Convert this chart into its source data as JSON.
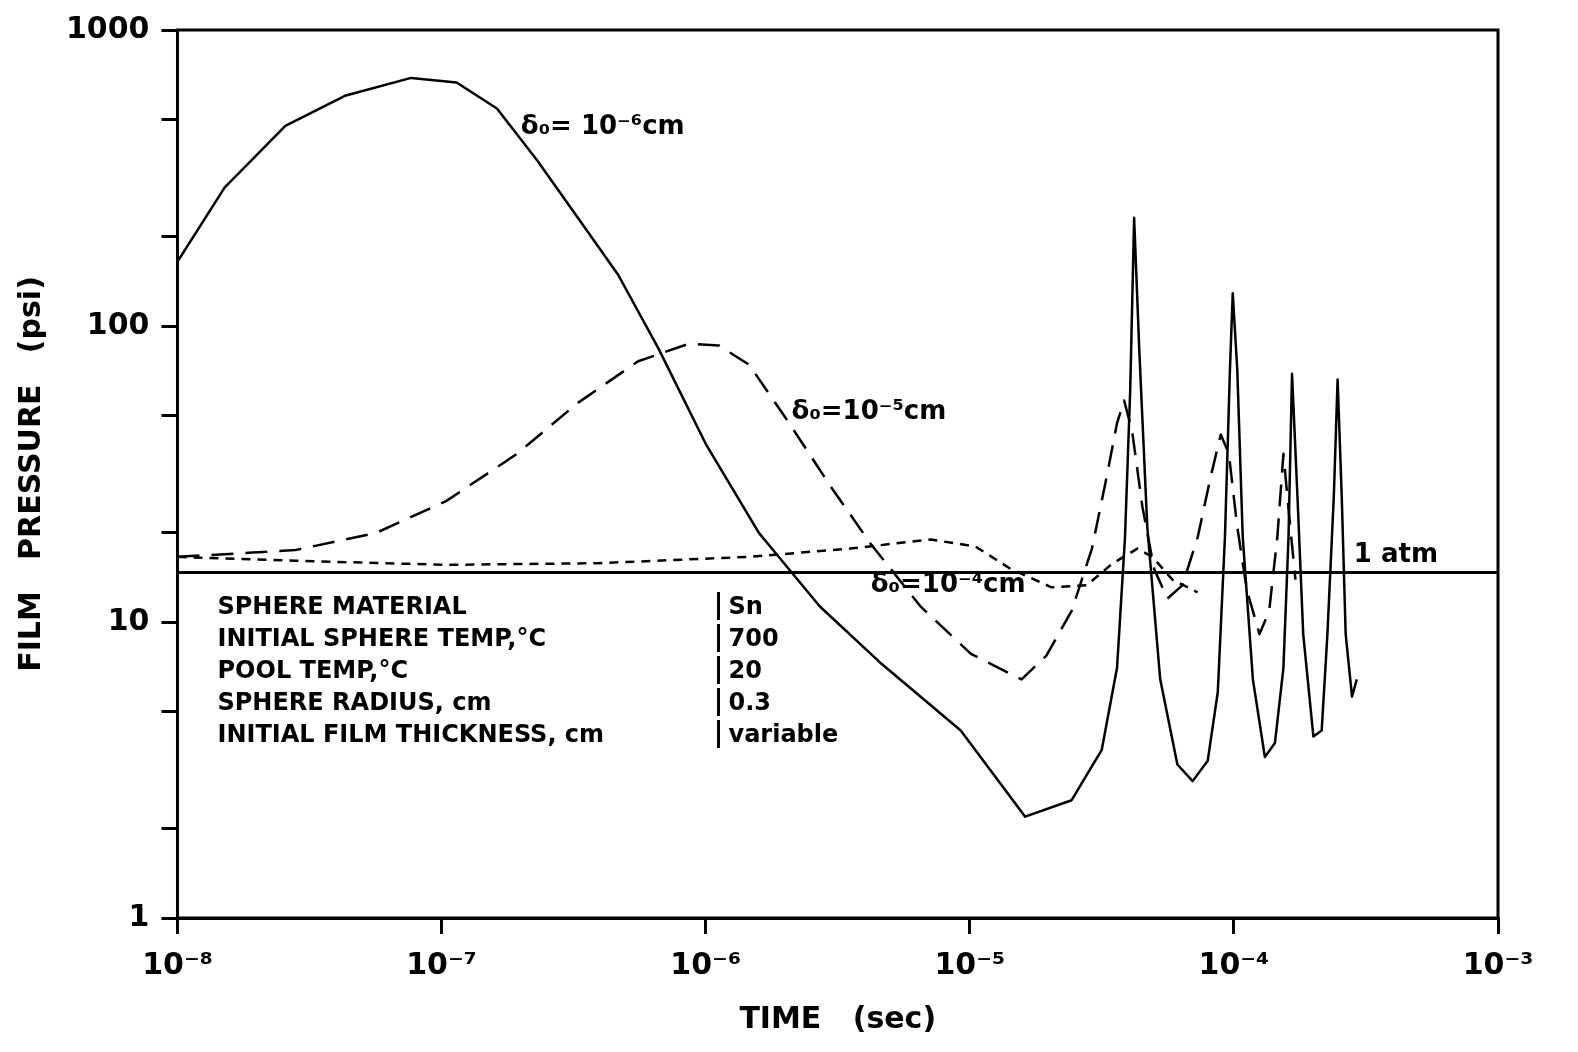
{
  "chart_data": {
    "type": "line",
    "xlabel": "TIME   (sec)",
    "ylabel": "FILM   PRESSURE   (psi)",
    "log": "xy",
    "grid": false,
    "legend": false,
    "marker": "none",
    "xlim": [
      1e-08,
      0.001
    ],
    "xticks": [
      {
        "value": 1e-08,
        "label": "10⁻⁸"
      },
      {
        "value": 1e-07,
        "label": "10⁻⁷"
      },
      {
        "value": 1e-06,
        "label": "10⁻⁶"
      },
      {
        "value": 1e-05,
        "label": "10⁻⁵"
      },
      {
        "value": 0.0001,
        "label": "10⁻⁴"
      },
      {
        "value": 0.001,
        "label": "10⁻³"
      }
    ],
    "ylim": [
      1,
      1000
    ],
    "yticks": [
      1,
      {
        "value": 2,
        "label": null
      },
      {
        "value": 5,
        "label": null
      },
      10,
      {
        "value": 20,
        "label": null
      },
      {
        "value": 50,
        "label": null
      },
      100,
      {
        "value": 200,
        "label": null
      },
      {
        "value": 500,
        "label": null
      },
      1000
    ],
    "ref_lines": [
      {
        "axis": "y",
        "value": 14.7,
        "label": "1 atm",
        "color": "#000000",
        "line_style": "solid"
      }
    ],
    "annotations": [
      "SPHERE MATERIAL",
      "Sn",
      "INITIAL SPHERE TEMP,°C",
      "700",
      "POOL TEMP,°C",
      "20",
      "SPHERE RADIUS, cm",
      "0.3",
      "INITIAL FILM THICKNESS, cm",
      "variable"
    ],
    "series": [
      {
        "name": "δ₀= 10⁻⁶cm",
        "color": "#000000",
        "line_style": "solid",
        "x": [
          1e-08,
          1.51e-08,
          2.56e-08,
          4.34e-08,
          7.67e-08,
          1.14e-07,
          1.62e-07,
          2.31e-07,
          3.28e-07,
          4.66e-07,
          6.62e-07,
          1e-06,
          1.59e-06,
          2.7e-06,
          4.57e-06,
          9.24e-06,
          1.62e-05,
          2.43e-05,
          3.16e-05,
          3.61e-05,
          3.87e-05,
          4.05e-05,
          4.19e-05,
          4.38e-05,
          4.7e-05,
          5.26e-05,
          6.11e-05,
          6.98e-05,
          7.96e-05,
          8.69e-05,
          9.25e-05,
          9.66e-05,
          9.9e-05,
          0.000103,
          0.000108,
          0.000118,
          0.000131,
          0.000143,
          0.000154,
          0.000161,
          0.000166,
          0.000174,
          0.000183,
          0.0002,
          0.000215,
          0.000226,
          0.000239,
          0.000247,
          0.000256,
          0.000265,
          0.00028,
          0.000292
        ],
        "values": [
          165,
          294,
          474,
          601,
          689,
          665,
          543,
          361,
          232,
          149,
          84,
          40,
          20,
          11.3,
          7.3,
          4.3,
          2.2,
          2.5,
          3.7,
          7,
          19.4,
          61,
          232,
          84,
          20.9,
          6.4,
          3.3,
          2.9,
          3.4,
          5.8,
          19.4,
          71,
          129,
          71,
          19.4,
          6.4,
          3.5,
          3.9,
          7,
          19.4,
          69,
          26.7,
          9.1,
          4.1,
          4.3,
          9.1,
          26.7,
          66,
          26.7,
          9.1,
          5.6,
          6.4
        ]
      },
      {
        "name": "δ₀=10⁻⁵cm",
        "color": "#000000",
        "line_style": "dashed",
        "x": [
          1e-08,
          2.8e-08,
          5.65e-08,
          1.04e-07,
          1.93e-07,
          3.28e-07,
          5.55e-07,
          8.61e-07,
          1.12e-06,
          1.46e-06,
          2.07e-06,
          2.95e-06,
          4.19e-06,
          6.5e-06,
          1.01e-05,
          1.57e-05,
          1.95e-05,
          2.43e-05,
          2.9e-05,
          3.3e-05,
          3.61e-05,
          3.84e-05,
          4.12e-05,
          4.5e-05,
          4.99e-05,
          5.6e-05,
          6.38e-05,
          7.29e-05,
          8.17e-05,
          8.92e-05,
          9.57e-05,
          0.000103,
          0.000112,
          0.000125,
          0.000136,
          0.000146,
          0.000154,
          0.000162,
          0.000171
        ],
        "values": [
          16.6,
          17.5,
          20,
          25.6,
          37,
          55,
          76,
          87,
          86,
          74,
          47,
          29,
          18.5,
          11.3,
          7.8,
          6.4,
          7.7,
          10.9,
          17.7,
          31,
          47,
          56,
          44,
          24.6,
          15.1,
          12,
          13.3,
          19.3,
          31,
          43,
          37,
          20.9,
          12.8,
          9.1,
          10.9,
          19.3,
          37,
          22.7,
          13.9
        ]
      },
      {
        "name": "δ₀=10⁻⁴cm",
        "color": "#000000",
        "line_style": "dashed",
        "x": [
          1e-08,
          2.8e-08,
          1.04e-07,
          3.91e-07,
          1.46e-06,
          3.52e-06,
          7.1e-06,
          1.05e-05,
          1.43e-05,
          2.04e-05,
          2.77e-05,
          3.45e-05,
          4.31e-05,
          4.91e-05,
          5.85e-05,
          7.29e-05
        ],
        "values": [
          16.6,
          16.1,
          15.6,
          15.8,
          16.6,
          17.7,
          19,
          18,
          15.1,
          13.1,
          13.3,
          15.7,
          17.7,
          16.6,
          13.9,
          12.6
        ]
      }
    ]
  }
}
